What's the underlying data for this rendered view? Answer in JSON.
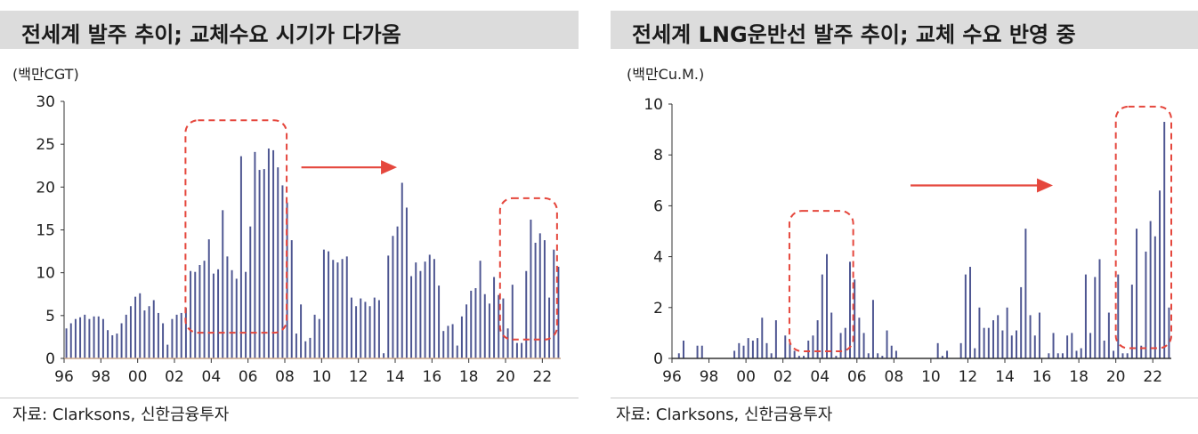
{
  "charts": [
    {
      "title": "전세계 발주 추이; 교체수요 시기가 다가옴",
      "unit": "(백만CGT)",
      "source": "자료: Clarksons, 신한금융투자",
      "chart_data": {
        "type": "bar",
        "ylim": [
          0,
          30
        ],
        "yticks": [
          "0",
          "5",
          "10",
          "15",
          "20",
          "25",
          "30"
        ],
        "xlim": [
          1996,
          2023
        ],
        "xticks": [
          "96",
          "98",
          "00",
          "02",
          "04",
          "06",
          "08",
          "10",
          "12",
          "14",
          "16",
          "18",
          "20",
          "22"
        ],
        "x_start": 1996.0,
        "x_step": 0.25,
        "values": [
          3.5,
          4.1,
          4.6,
          4.8,
          5.1,
          4.6,
          4.9,
          4.9,
          4.6,
          3.3,
          2.7,
          2.9,
          4.1,
          5.1,
          6.1,
          7.2,
          7.6,
          5.6,
          6.1,
          6.8,
          5.3,
          4.1,
          1.6,
          4.6,
          5.1,
          5.3,
          5.9,
          10.2,
          10.1,
          10.9,
          11.4,
          13.9,
          9.9,
          10.4,
          17.3,
          11.9,
          10.3,
          9.3,
          23.6,
          10.1,
          15.4,
          24.1,
          22.0,
          22.1,
          24.5,
          24.3,
          22.3,
          20.2,
          18.2,
          13.8,
          2.9,
          6.3,
          2.0,
          2.4,
          5.1,
          4.6,
          12.7,
          12.5,
          11.5,
          11.2,
          11.6,
          11.9,
          7.1,
          6.1,
          7.0,
          6.6,
          6.1,
          7.1,
          6.8,
          0.6,
          12.0,
          14.3,
          15.4,
          20.5,
          17.6,
          9.6,
          11.2,
          10.2,
          11.3,
          12.1,
          11.6,
          8.5,
          3.2,
          3.8,
          4.0,
          1.5,
          4.9,
          6.3,
          7.9,
          8.2,
          11.4,
          7.5,
          6.4,
          9.5,
          7.4,
          7.0,
          3.5,
          8.6,
          1.8,
          1.8,
          10.2,
          16.2,
          13.5,
          14.6,
          13.8,
          7.1,
          12.7,
          10.7
        ],
        "annotations": [
          {
            "kind": "dashed-box",
            "x0": 2002.6,
            "x1": 2008.1,
            "y0": 3.0,
            "y1": 27.8
          },
          {
            "kind": "arrow",
            "x0": 2008.9,
            "x1": 2014.1,
            "y": 22.3
          },
          {
            "kind": "dashed-box",
            "x0": 2019.7,
            "x1": 2022.8,
            "y0": 2.2,
            "y1": 18.7
          }
        ]
      }
    },
    {
      "title": "전세계 LNG운반선 발주 추이; 교체 수요 반영 중",
      "unit": "(백만Cu.M.)",
      "source": "자료: Clarksons, 신한금융투자",
      "chart_data": {
        "type": "bar",
        "ylim": [
          0,
          10
        ],
        "yticks": [
          "0",
          "2",
          "4",
          "6",
          "8",
          "10"
        ],
        "xlim": [
          1996,
          2023
        ],
        "xticks": [
          "96",
          "98",
          "00",
          "02",
          "04",
          "06",
          "08",
          "10",
          "12",
          "14",
          "16",
          "18",
          "20",
          "22"
        ],
        "x_start": 1996.0,
        "x_step": 0.25,
        "values": [
          0,
          0.2,
          0.7,
          0,
          0,
          0.5,
          0.5,
          0,
          0,
          0,
          0,
          0,
          0,
          0.3,
          0.6,
          0.5,
          0.8,
          0.7,
          0.8,
          1.6,
          0.6,
          0.2,
          1.5,
          0,
          0.9,
          0.6,
          0.3,
          0.1,
          0.1,
          0.7,
          0.9,
          1.5,
          3.3,
          4.1,
          1.8,
          0.1,
          1.0,
          1.2,
          3.8,
          3.1,
          1.6,
          1.0,
          0.2,
          2.3,
          0.2,
          0.1,
          1.1,
          0.5,
          0.3,
          0,
          0,
          0,
          0,
          0,
          0,
          0,
          0,
          0.6,
          0.1,
          0.3,
          0,
          0,
          0.6,
          3.3,
          3.6,
          0.4,
          2.0,
          1.2,
          1.2,
          1.5,
          1.7,
          1.1,
          2.0,
          0.9,
          1.1,
          2.8,
          5.1,
          1.7,
          0.9,
          1.8,
          0,
          0.2,
          1.0,
          0.2,
          0.2,
          0.9,
          1.0,
          0.3,
          0.4,
          3.3,
          1.0,
          3.2,
          3.9,
          0.7,
          1.8,
          0.3,
          3.3,
          0.2,
          0.2,
          2.9,
          5.1,
          0.5,
          4.2,
          5.4,
          4.8,
          6.6,
          9.3,
          2.0
        ],
        "annotations": [
          {
            "kind": "dashed-box",
            "x0": 2002.35,
            "x1": 2005.8,
            "y0": 0.28,
            "y1": 5.8
          },
          {
            "kind": "arrow",
            "x0": 2008.9,
            "x1": 2016.6,
            "y": 6.8
          },
          {
            "kind": "dashed-box",
            "x0": 2020.0,
            "x1": 2023.0,
            "y0": 0.4,
            "y1": 9.9
          }
        ]
      }
    }
  ],
  "colors": {
    "bar": "#4d5591",
    "axis": "#333333",
    "highlight": "#e5473d",
    "title_bg": "#dcdcdc"
  }
}
